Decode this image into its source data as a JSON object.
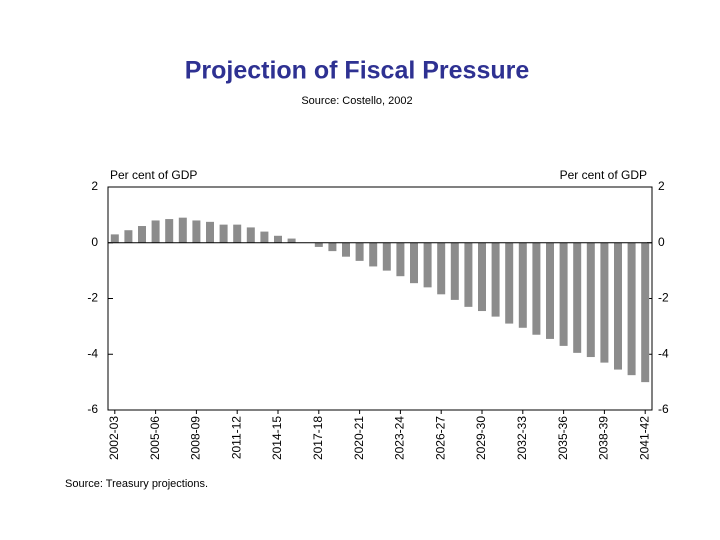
{
  "chart_data": {
    "type": "bar",
    "title": "Projection of Fiscal Pressure",
    "subtitle": "Source:  Costello, 2002",
    "ylabel": "Per cent of GDP",
    "y2label": "Per cent of GDP",
    "note": "Source:  Treasury projections.",
    "categories": [
      "2002-03",
      null,
      null,
      "2005-06",
      null,
      null,
      "2008-09",
      null,
      null,
      "2011-12",
      null,
      null,
      "2014-15",
      null,
      null,
      "2017-18",
      null,
      null,
      "2020-21",
      null,
      null,
      "2023-24",
      null,
      null,
      "2026-27",
      null,
      null,
      "2029-30",
      null,
      null,
      "2032-33",
      null,
      null,
      "2035-36",
      null,
      null,
      "2038-39",
      null,
      null,
      "2041-42"
    ],
    "values": [
      0.3,
      0.45,
      0.6,
      0.8,
      0.85,
      0.9,
      0.8,
      0.75,
      0.65,
      0.65,
      0.55,
      0.4,
      0.25,
      0.15,
      0,
      -0.15,
      -0.3,
      -0.5,
      -0.65,
      -0.85,
      -1.0,
      -1.2,
      -1.45,
      -1.6,
      -1.85,
      -2.05,
      -2.3,
      -2.45,
      -2.65,
      -2.9,
      -3.05,
      -3.3,
      -3.45,
      -3.7,
      -3.95,
      -4.1,
      -4.3,
      -4.55,
      -4.75,
      -5.0
    ],
    "color": "#8c8c8c",
    "ylim": [
      -6,
      2
    ],
    "yticks": [
      -6,
      -4,
      -2,
      0,
      2
    ],
    "y2lim": [
      -6,
      2
    ],
    "y2ticks": [
      -6,
      -4,
      -2,
      0,
      2
    ]
  }
}
